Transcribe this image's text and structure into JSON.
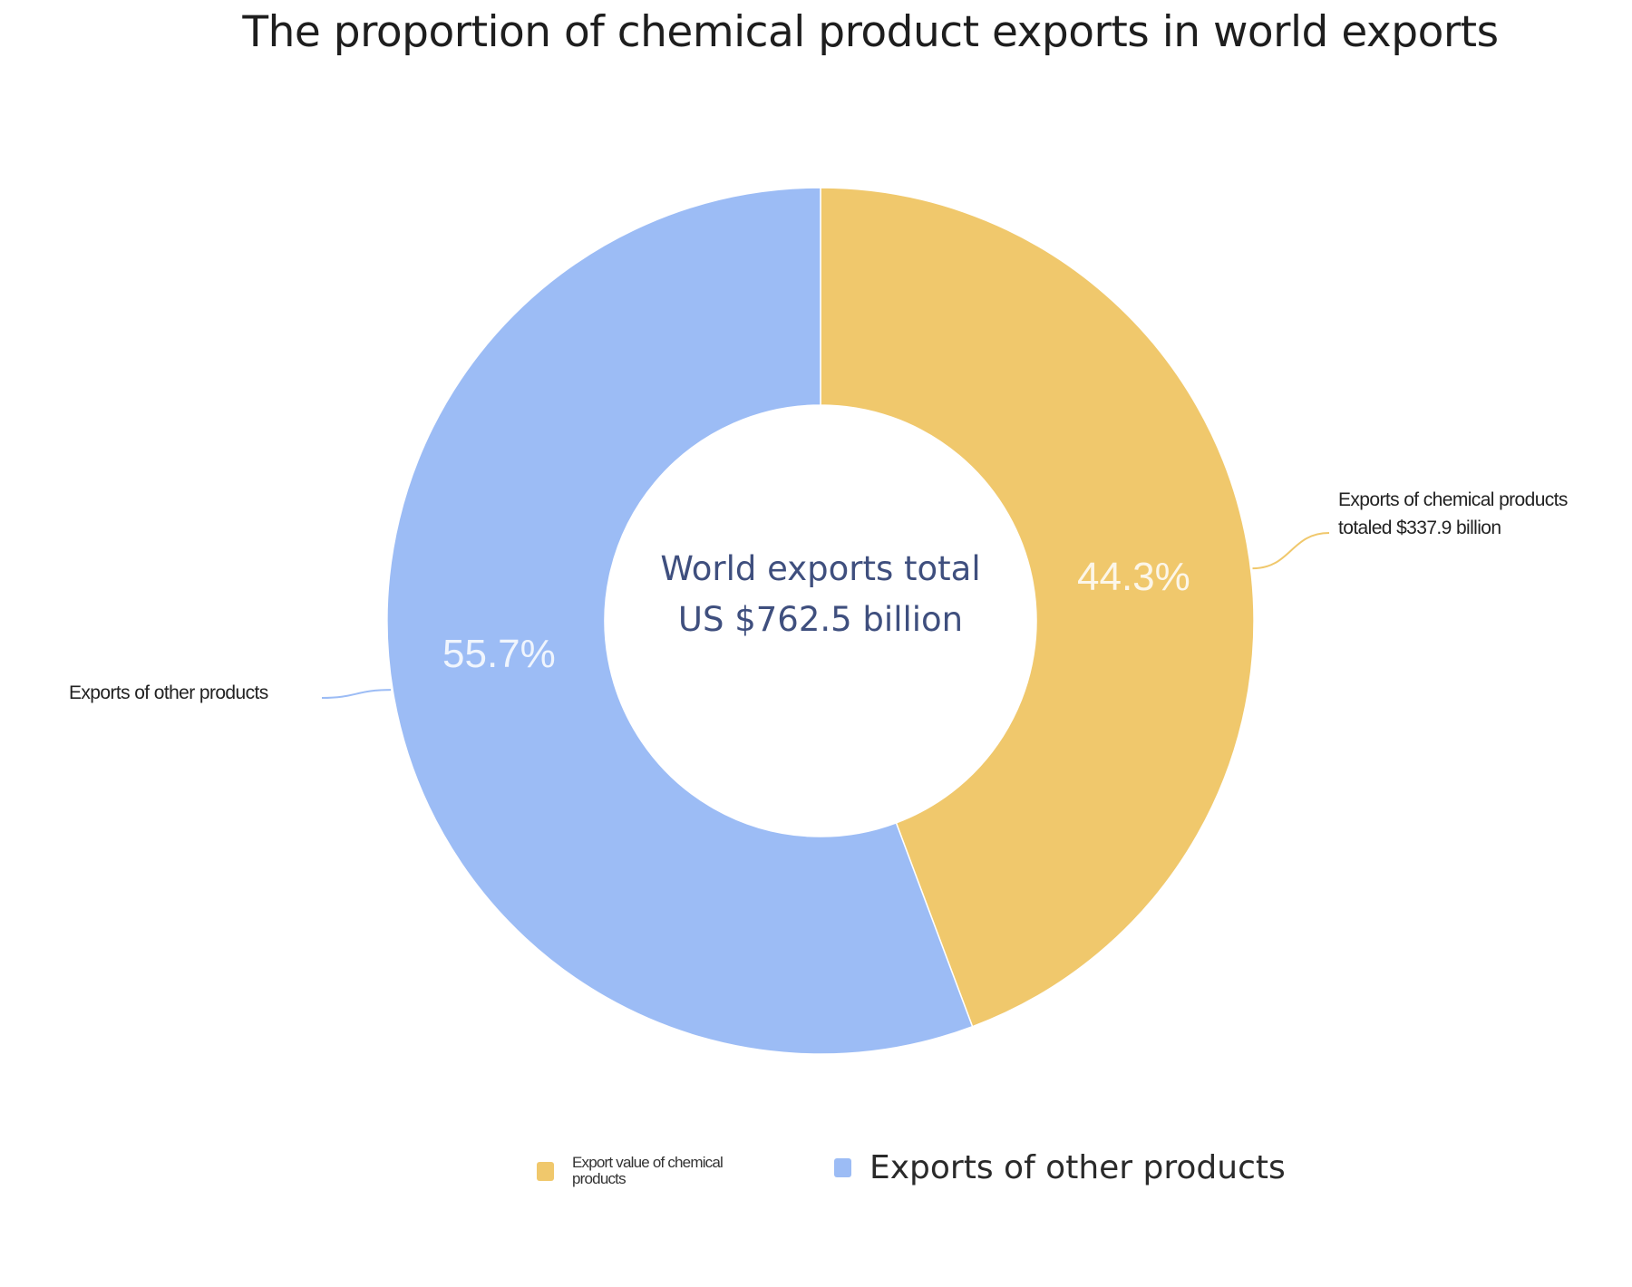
{
  "chart_data": {
    "type": "pie",
    "variant": "donut",
    "title": "The proportion of chemical product exports in world exports",
    "center_label": {
      "line1": "World exports total",
      "line2": "US $762.5 billion"
    },
    "total": 762.5,
    "slices": [
      {
        "key": "chem",
        "value": 337.9,
        "percent": 44.3,
        "percent_label": "44.3%",
        "color": "#f0c86c",
        "legend_label": "Export value of chemical products",
        "callout": "Exports of chemical products totaled $337.9 billion"
      },
      {
        "key": "other",
        "value": 424.6,
        "percent": 55.7,
        "percent_label": "55.7%",
        "color": "#9cbcf5",
        "legend_label": "Exports of other products",
        "callout": "Exports of other products"
      }
    ],
    "start_angle": "12 o'clock",
    "direction": "clockwise",
    "legend_position": "bottom",
    "grid": false
  }
}
